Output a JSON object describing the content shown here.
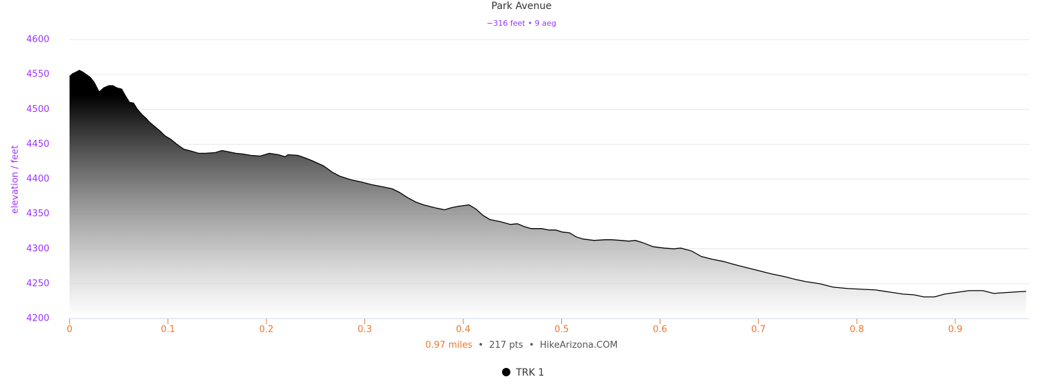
{
  "chart_data": {
    "type": "area",
    "title": "Park Avenue",
    "subtitle": "−316 feet • 9 aeg",
    "y_label": "elevation / feet",
    "credits": [
      "0.97 miles",
      "217 pts",
      "HikeArizona.COM"
    ],
    "credits_separator": "•",
    "x_axis_color": "#e8772e",
    "y_axis_color": "#9933ff",
    "grid": true,
    "legend": "bottom",
    "xlim": [
      0,
      0.975
    ],
    "xticks": [
      0,
      0.1,
      0.2,
      0.3,
      0.4,
      0.5,
      0.6,
      0.7,
      0.8,
      0.9
    ],
    "ylim": [
      4200,
      4600
    ],
    "yticks": [
      4200,
      4250,
      4300,
      4350,
      4400,
      4450,
      4500,
      4550,
      4600
    ],
    "x": [
      0,
      0.003,
      0.006,
      0.01,
      0.014,
      0.018,
      0.021,
      0.025,
      0.03,
      0.035,
      0.04,
      0.044,
      0.048,
      0.053,
      0.057,
      0.061,
      0.065,
      0.069,
      0.074,
      0.078,
      0.081,
      0.086,
      0.092,
      0.097,
      0.103,
      0.109,
      0.116,
      0.124,
      0.131,
      0.138,
      0.148,
      0.155,
      0.162,
      0.169,
      0.176,
      0.184,
      0.194,
      0.203,
      0.212,
      0.219,
      0.222,
      0.232,
      0.24,
      0.247,
      0.258,
      0.268,
      0.275,
      0.286,
      0.296,
      0.307,
      0.318,
      0.328,
      0.335,
      0.344,
      0.352,
      0.36,
      0.371,
      0.381,
      0.388,
      0.395,
      0.406,
      0.413,
      0.42,
      0.427,
      0.438,
      0.448,
      0.455,
      0.462,
      0.469,
      0.48,
      0.487,
      0.494,
      0.501,
      0.508,
      0.515,
      0.522,
      0.533,
      0.544,
      0.551,
      0.561,
      0.568,
      0.575,
      0.582,
      0.593,
      0.604,
      0.614,
      0.621,
      0.632,
      0.642,
      0.653,
      0.664,
      0.674,
      0.685,
      0.699,
      0.713,
      0.727,
      0.738,
      0.748,
      0.762,
      0.776,
      0.791,
      0.805,
      0.819,
      0.833,
      0.847,
      0.858,
      0.868,
      0.879,
      0.889,
      0.904,
      0.914,
      0.928,
      0.939,
      0.949,
      0.96,
      0.972
    ],
    "series": [
      {
        "name": "TRK 1",
        "color": "#000000",
        "values": [
          4547,
          4551,
          4553,
          4556,
          4553,
          4549,
          4546,
          4539,
          4525,
          4531,
          4534,
          4534,
          4531,
          4529,
          4519,
          4510,
          4509,
          4500,
          4492,
          4487,
          4482,
          4476,
          4469,
          4462,
          4457,
          4450,
          4443,
          4440,
          4437,
          4437,
          4438,
          4441,
          4439,
          4437,
          4436,
          4434,
          4433,
          4437,
          4435,
          4432,
          4435,
          4434,
          4430,
          4426,
          4419,
          4409,
          4404,
          4399,
          4396,
          4392,
          4389,
          4386,
          4381,
          4373,
          4367,
          4363,
          4359,
          4356,
          4359,
          4361,
          4363,
          4357,
          4348,
          4342,
          4339,
          4335,
          4336,
          4332,
          4329,
          4329,
          4327,
          4327,
          4324,
          4323,
          4317,
          4314,
          4312,
          4313,
          4313,
          4312,
          4311,
          4312,
          4309,
          4303,
          4301,
          4300,
          4301,
          4297,
          4289,
          4285,
          4282,
          4278,
          4274,
          4269,
          4264,
          4260,
          4256,
          4253,
          4250,
          4245,
          4243,
          4242,
          4241,
          4238,
          4235,
          4234,
          4231,
          4231,
          4235,
          4238,
          4240,
          4240,
          4236,
          4237,
          4238,
          4239
        ]
      }
    ]
  }
}
